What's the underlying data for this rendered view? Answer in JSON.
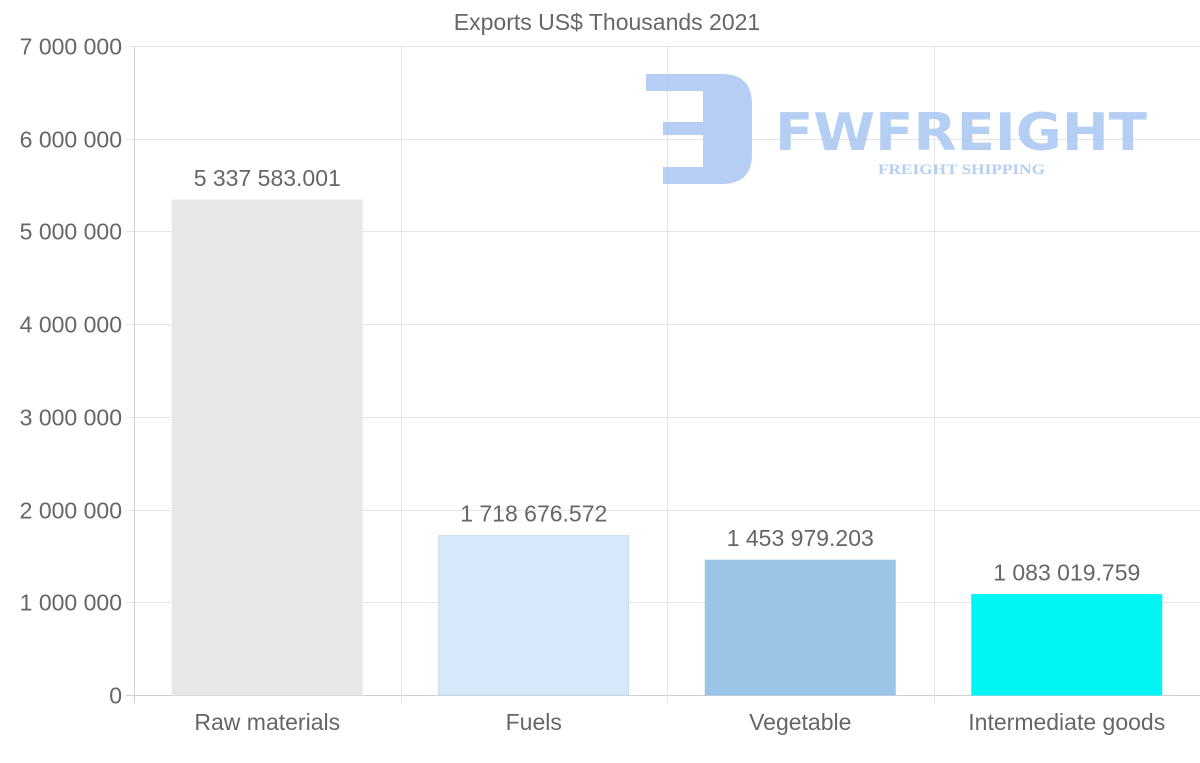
{
  "chart_data": {
    "type": "bar",
    "title": "Exports US$ Thousands 2021",
    "xlabel": "",
    "ylabel": "",
    "categories": [
      "Raw materials",
      "Fuels",
      "Vegetable",
      "Intermediate goods"
    ],
    "values": [
      5337583.001,
      1718676.572,
      1453979.203,
      1083019.759
    ],
    "data_labels": [
      "5 337 583.001",
      "1 718 676.572",
      "1 453 979.203",
      "1 083 019.759"
    ],
    "colors": [
      "#e8e8e8",
      "#d7e8fa",
      "#9bc5e7",
      "#00f5f5"
    ],
    "ylim": [
      0,
      7000000
    ],
    "yticks": [
      0,
      1000000,
      2000000,
      3000000,
      4000000,
      5000000,
      6000000,
      7000000
    ],
    "ytick_labels": [
      "0",
      "1 000 000",
      "2 000 000",
      "3 000 000",
      "4 000 000",
      "5 000 000",
      "6 000 000",
      "7 000 000"
    ],
    "grid": true,
    "legend": "none"
  },
  "watermark": {
    "brand": "FWFREIGHT",
    "tagline": "FREIGHT SHIPPING",
    "color": "#a9c6f1"
  }
}
